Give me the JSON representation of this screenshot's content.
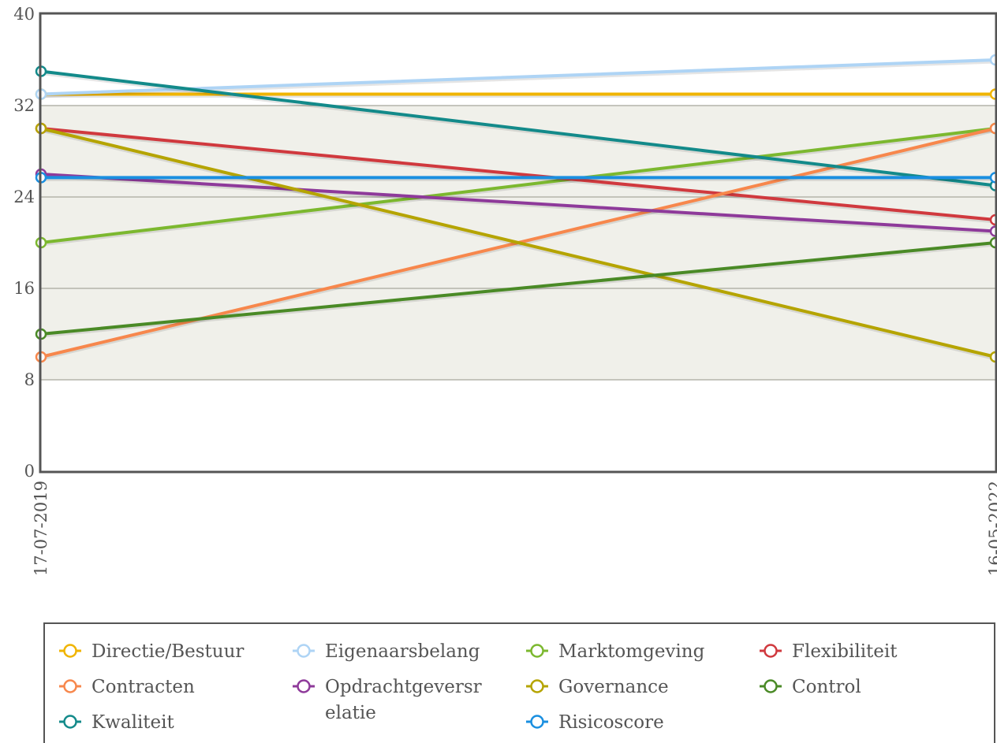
{
  "chart_data": {
    "type": "line",
    "title": "",
    "xlabel": "",
    "ylabel": "",
    "x": [
      "17-07-2019",
      "16-05-2022"
    ],
    "ylim": [
      0,
      40
    ],
    "yticks": [
      0,
      8,
      16,
      24,
      32,
      40
    ],
    "highlight_band": [
      8,
      32
    ],
    "grid": true,
    "legend_position": "bottom",
    "series": [
      {
        "name": "Directie/Bestuur",
        "color": "#f0b400",
        "values": [
          33,
          33
        ]
      },
      {
        "name": "Eigenaarsbelang",
        "color": "#aed4f5",
        "values": [
          33,
          36
        ]
      },
      {
        "name": "Marktomgeving",
        "color": "#7cb82f",
        "values": [
          20,
          30
        ]
      },
      {
        "name": "Flexibiliteit",
        "color": "#d0393e",
        "values": [
          30,
          22
        ]
      },
      {
        "name": "Contracten",
        "color": "#f7874c",
        "values": [
          10,
          30
        ]
      },
      {
        "name": "Opdrachtgeversrelatie",
        "color": "#8e3a9a",
        "values": [
          26,
          21
        ]
      },
      {
        "name": "Governance",
        "color": "#b5a400",
        "values": [
          30,
          10
        ]
      },
      {
        "name": "Control",
        "color": "#4a8a26",
        "values": [
          12,
          20
        ]
      },
      {
        "name": "Kwaliteit",
        "color": "#138a8a",
        "values": [
          35,
          25
        ]
      },
      {
        "name": "Risicoscore",
        "color": "#1a8fe0",
        "values": [
          25.7,
          25.7
        ]
      }
    ]
  },
  "legend": {
    "rows": [
      [
        "Directie/Bestuur",
        "Eigenaarsbelang",
        "Marktomgeving",
        "Flexibiliteit"
      ],
      [
        "Contracten",
        "Opdrachtgeversrelatie",
        "Governance",
        "Control"
      ],
      [
        "Kwaliteit",
        "",
        "Risicoscore",
        ""
      ]
    ],
    "wrapped_labels": {
      "Opdrachtgeversrelatie": [
        "Opdrachtgeversr",
        "elatie"
      ]
    }
  }
}
